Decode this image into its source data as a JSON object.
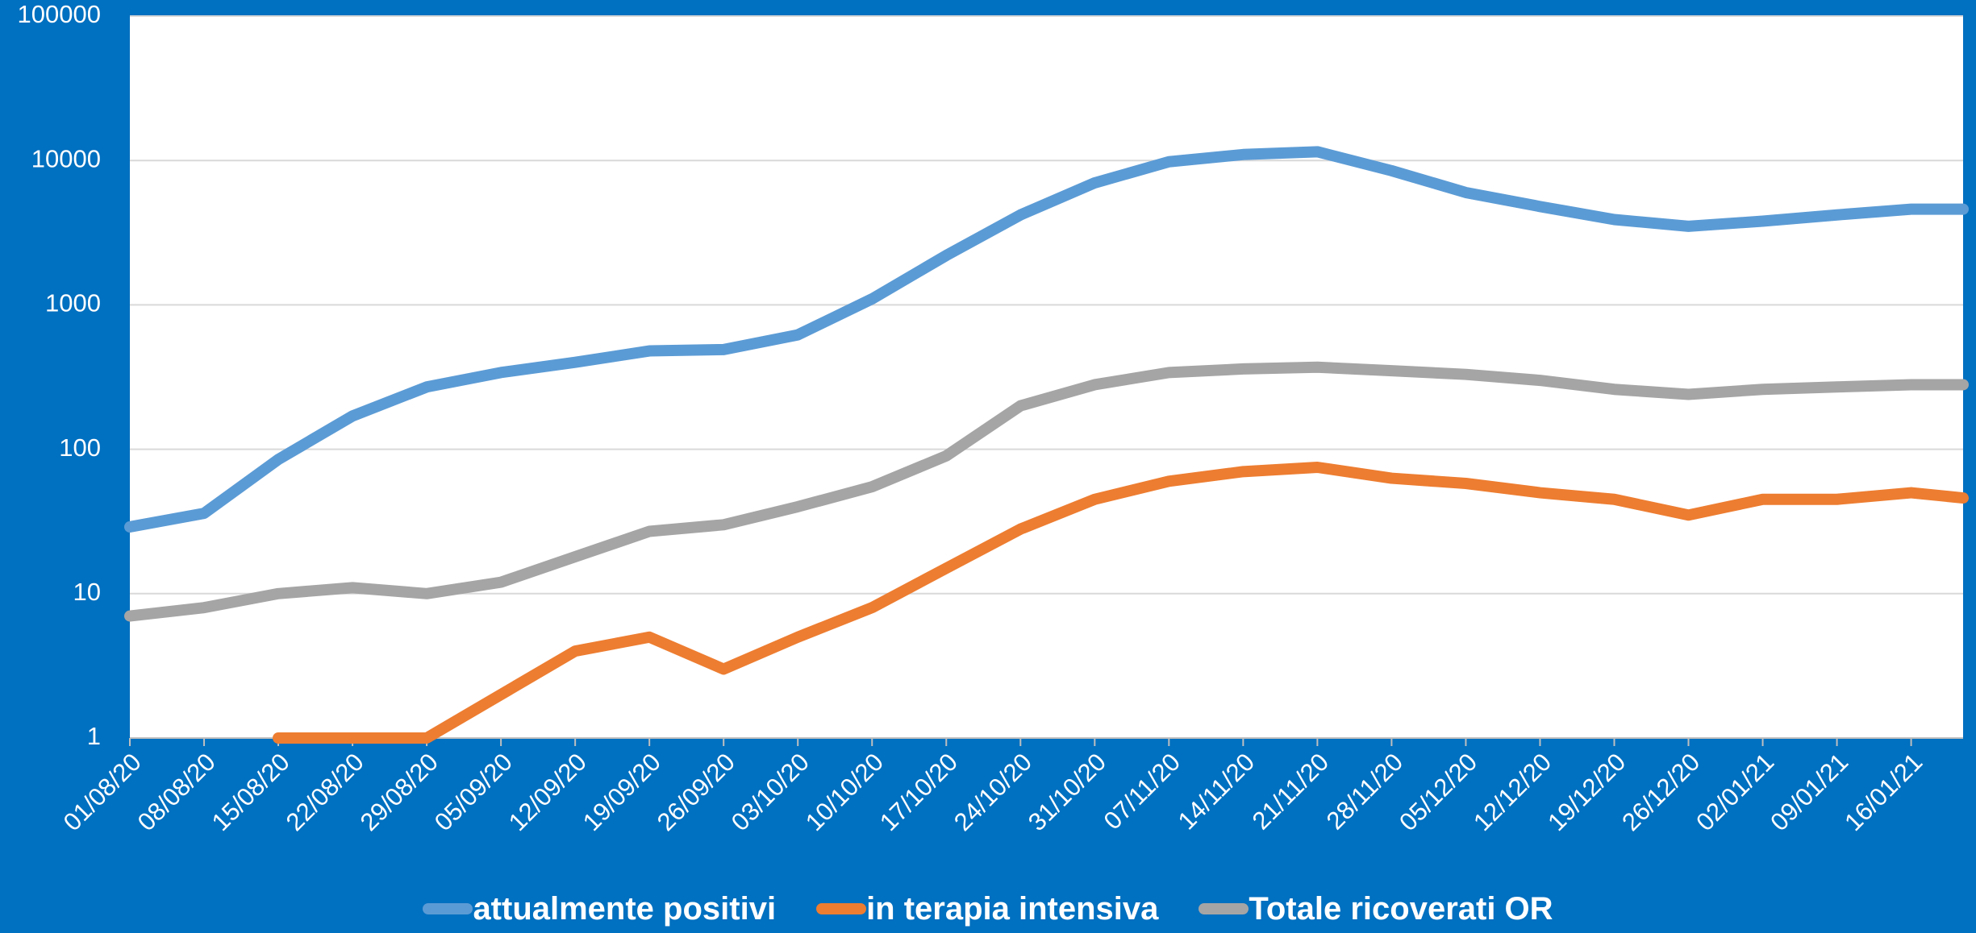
{
  "chart_data": {
    "type": "line",
    "categories": [
      "01/08/20",
      "08/08/20",
      "15/08/20",
      "22/08/20",
      "29/08/20",
      "05/09/20",
      "12/09/20",
      "19/09/20",
      "26/09/20",
      "03/10/20",
      "10/10/20",
      "17/10/20",
      "24/10/20",
      "31/10/20",
      "07/11/20",
      "14/11/20",
      "21/11/20",
      "28/11/20",
      "05/12/20",
      "12/12/20",
      "19/12/20",
      "26/12/20",
      "02/01/21",
      "09/01/21",
      "16/01/21",
      null
    ],
    "series": [
      {
        "name": "attualmente positivi",
        "color": "#5b9bd5",
        "values": [
          29,
          36,
          85,
          170,
          270,
          340,
          400,
          480,
          490,
          620,
          1100,
          2200,
          4200,
          7000,
          9800,
          11000,
          11500,
          8500,
          6000,
          4800,
          3900,
          3500,
          3800,
          4200,
          4600,
          4600
        ]
      },
      {
        "name": "in terapia intensiva",
        "color": "#ed7d31",
        "values": [
          null,
          null,
          1,
          1,
          1,
          2,
          4,
          5,
          3,
          5,
          8,
          15,
          28,
          45,
          60,
          70,
          75,
          63,
          58,
          50,
          45,
          35,
          45,
          45,
          50,
          46
        ]
      },
      {
        "name": "Totale ricoverati OR",
        "color": "#a5a5a5",
        "values": [
          7,
          8,
          10,
          11,
          10,
          12,
          18,
          27,
          30,
          40,
          55,
          90,
          200,
          280,
          340,
          360,
          370,
          350,
          330,
          300,
          260,
          240,
          260,
          270,
          280,
          280
        ]
      }
    ],
    "ylim": [
      1,
      100000
    ],
    "yticks": [
      1,
      10,
      100,
      1000,
      10000,
      100000
    ],
    "log_scale": true,
    "grid": true,
    "legend": "bottom"
  }
}
